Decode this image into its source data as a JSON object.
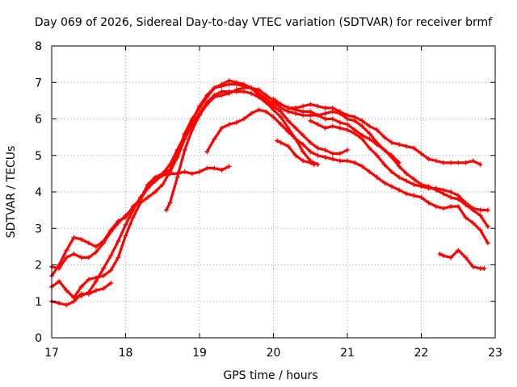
{
  "chart_data": {
    "type": "scatter",
    "title": "Day 069 of 2026, Sidereal Day-to-day VTEC variation (SDTVAR) for receiver brmf",
    "xlabel": "GPS time / hours",
    "ylabel": "SDTVAR / TECUs",
    "xlim": [
      17,
      23
    ],
    "ylim": [
      0,
      8
    ],
    "xticks": [
      "17",
      "18",
      "19",
      "20",
      "21",
      "22",
      "23"
    ],
    "yticks": [
      "0",
      "1",
      "2",
      "3",
      "4",
      "5",
      "6",
      "7",
      "8"
    ],
    "grid": true,
    "color": "#ff0000",
    "marker": "+",
    "series": [
      {
        "name": "track-1",
        "x": [
          17.0,
          17.1,
          17.2,
          17.3,
          17.4,
          17.5,
          17.6,
          17.7,
          17.8,
          17.9,
          18.0,
          18.1,
          18.2,
          18.3,
          18.4,
          18.5,
          18.6,
          18.7,
          18.8,
          18.9,
          19.0,
          19.1,
          19.2,
          19.3,
          19.4
        ],
        "y": [
          1.7,
          2.0,
          2.4,
          2.75,
          2.7,
          2.6,
          2.5,
          2.65,
          2.95,
          3.2,
          3.3,
          3.6,
          3.8,
          4.1,
          4.3,
          4.45,
          4.5,
          4.5,
          4.55,
          4.5,
          4.55,
          4.65,
          4.65,
          4.6,
          4.7
        ]
      },
      {
        "name": "track-2",
        "x": [
          17.0,
          17.1,
          17.2,
          17.3,
          17.4,
          17.5,
          17.6,
          17.7,
          17.8,
          17.9,
          18.0,
          18.1,
          18.2,
          18.3,
          18.4,
          18.5,
          18.6,
          18.7,
          18.8,
          18.9,
          19.0,
          19.1,
          19.2,
          19.3,
          19.4,
          19.5,
          19.6,
          19.7,
          19.8,
          19.9,
          20.0
        ],
        "y": [
          1.95,
          1.9,
          2.2,
          2.3,
          2.2,
          2.2,
          2.35,
          2.6,
          2.9,
          3.15,
          3.35,
          3.55,
          3.8,
          4.2,
          4.4,
          4.5,
          4.6,
          5.0,
          5.6,
          6.0,
          6.3,
          6.6,
          6.85,
          6.95,
          7.05,
          7.0,
          6.95,
          6.85,
          6.7,
          6.55,
          6.4
        ]
      },
      {
        "name": "track-3",
        "x": [
          17.0,
          17.1,
          17.2,
          17.3,
          17.4,
          17.5,
          17.6,
          17.7,
          17.8,
          17.9,
          18.0,
          18.1,
          18.2,
          18.3,
          18.4,
          18.5,
          18.6,
          18.7,
          18.8,
          18.9,
          19.0,
          19.1,
          19.2,
          19.3,
          19.4,
          19.5,
          19.6,
          19.7,
          19.8,
          19.9,
          20.0,
          20.1,
          20.2,
          20.3,
          20.4,
          20.5,
          20.6
        ],
        "y": [
          1.4,
          1.55,
          1.3,
          1.1,
          1.15,
          1.25,
          1.55,
          1.9,
          2.25,
          2.65,
          3.1,
          3.5,
          3.85,
          4.1,
          4.3,
          4.5,
          4.75,
          5.15,
          5.55,
          5.95,
          6.35,
          6.65,
          6.85,
          6.9,
          6.95,
          6.95,
          6.9,
          6.85,
          6.65,
          6.45,
          6.25,
          6.05,
          5.75,
          5.45,
          5.1,
          4.85,
          4.75
        ]
      },
      {
        "name": "track-4",
        "x": [
          17.0,
          17.1,
          17.2,
          17.3,
          17.4,
          17.5,
          17.6,
          17.7,
          17.8
        ],
        "y": [
          1.0,
          0.95,
          0.9,
          1.0,
          1.2,
          1.2,
          1.3,
          1.35,
          1.5
        ]
      },
      {
        "name": "track-5",
        "x": [
          17.3,
          17.4,
          17.5,
          17.6,
          17.7,
          17.8,
          17.9,
          18.0,
          18.1,
          18.2,
          18.3,
          18.4,
          18.5,
          18.6,
          18.7,
          18.8,
          18.9,
          19.0,
          19.1,
          19.2,
          19.3,
          19.4,
          19.5,
          19.6,
          19.7,
          19.8,
          19.9,
          20.0,
          20.1,
          20.2,
          20.3,
          20.4,
          20.5,
          20.6,
          20.7,
          20.8,
          20.9,
          21.0
        ],
        "y": [
          1.1,
          1.4,
          1.6,
          1.65,
          1.7,
          1.85,
          2.2,
          2.8,
          3.3,
          3.7,
          3.85,
          4.0,
          4.2,
          4.55,
          4.95,
          5.45,
          5.85,
          6.15,
          6.45,
          6.65,
          6.75,
          6.75,
          6.75,
          6.75,
          6.7,
          6.6,
          6.45,
          6.35,
          6.2,
          5.95,
          5.75,
          5.55,
          5.35,
          5.2,
          5.15,
          5.05,
          5.05,
          5.15
        ]
      },
      {
        "name": "track-6",
        "x": [
          18.55,
          18.6,
          18.7,
          18.8,
          18.9,
          19.0,
          19.1,
          19.2,
          19.3,
          19.4,
          19.5,
          19.6,
          19.7,
          19.8,
          19.9,
          20.0,
          20.1,
          20.2,
          20.3,
          20.4,
          20.5,
          20.6,
          20.7,
          20.8,
          20.9,
          21.0,
          21.1,
          21.2,
          21.3,
          21.4,
          21.5,
          21.6,
          21.7
        ],
        "y": [
          3.5,
          3.7,
          4.4,
          5.15,
          5.7,
          6.1,
          6.4,
          6.6,
          6.65,
          6.7,
          6.8,
          6.85,
          6.85,
          6.8,
          6.65,
          6.5,
          6.4,
          6.3,
          6.25,
          6.2,
          6.2,
          6.1,
          6.0,
          6.0,
          5.9,
          5.85,
          5.7,
          5.55,
          5.45,
          5.3,
          5.15,
          5.0,
          4.8
        ]
      },
      {
        "name": "track-7",
        "x": [
          19.1,
          19.2,
          19.3,
          19.4,
          19.5,
          19.6,
          19.7,
          19.8,
          19.9,
          20.0,
          20.1,
          20.2,
          20.3,
          20.4,
          20.5,
          20.6,
          20.7,
          20.8,
          20.9,
          21.0,
          21.1,
          21.2,
          21.3,
          21.4,
          21.5,
          21.6,
          21.7,
          21.8,
          21.9,
          22.0,
          22.1,
          22.2,
          22.3,
          22.4,
          22.5,
          22.6,
          22.7,
          22.8,
          22.9
        ],
        "y": [
          5.1,
          5.45,
          5.75,
          5.85,
          5.9,
          6.0,
          6.15,
          6.25,
          6.2,
          6.05,
          5.85,
          5.65,
          5.45,
          5.3,
          5.1,
          5.0,
          4.95,
          4.9,
          4.85,
          4.85,
          4.8,
          4.7,
          4.55,
          4.4,
          4.25,
          4.15,
          4.05,
          3.95,
          3.9,
          3.85,
          3.7,
          3.6,
          3.55,
          3.6,
          3.6,
          3.3,
          3.15,
          2.95,
          2.6
        ]
      },
      {
        "name": "track-8",
        "x": [
          20.0,
          20.1,
          20.2,
          20.3,
          20.4,
          20.5,
          20.6,
          20.7,
          20.8,
          20.9,
          21.0,
          21.1,
          21.2,
          21.3,
          21.4,
          21.5,
          21.6,
          21.7,
          21.8,
          21.9,
          22.0,
          22.1,
          22.2,
          22.3,
          22.4,
          22.5,
          22.6,
          22.7,
          22.8
        ],
        "y": [
          6.55,
          6.4,
          6.3,
          6.3,
          6.35,
          6.4,
          6.35,
          6.3,
          6.3,
          6.2,
          6.1,
          6.05,
          5.95,
          5.8,
          5.7,
          5.5,
          5.35,
          5.3,
          5.25,
          5.2,
          5.05,
          4.9,
          4.85,
          4.8,
          4.8,
          4.8,
          4.8,
          4.85,
          4.75
        ]
      },
      {
        "name": "track-9",
        "x": [
          20.0,
          20.1,
          20.2,
          20.3,
          20.4,
          20.5,
          20.6,
          20.7,
          20.8,
          20.9,
          21.0,
          21.1,
          21.2,
          21.3,
          21.4,
          21.5,
          21.6,
          21.7,
          21.8,
          21.9,
          22.0,
          22.1,
          22.2,
          22.3,
          22.4,
          22.5,
          22.6,
          22.7,
          22.8,
          22.9
        ],
        "y": [
          6.45,
          6.3,
          6.2,
          6.15,
          6.1,
          6.1,
          6.1,
          6.15,
          6.2,
          6.15,
          6.0,
          5.95,
          5.8,
          5.6,
          5.35,
          5.15,
          4.95,
          4.7,
          4.5,
          4.35,
          4.2,
          4.15,
          4.05,
          3.95,
          3.85,
          3.8,
          3.65,
          3.5,
          3.35,
          3.05
        ]
      },
      {
        "name": "track-10",
        "x": [
          20.5,
          20.6,
          20.7,
          20.8,
          20.9,
          21.0,
          21.1,
          21.2,
          21.3,
          21.4,
          21.5,
          21.6,
          21.7,
          21.8,
          21.9,
          22.0,
          22.1,
          22.2,
          22.3,
          22.4,
          22.5,
          22.6,
          22.7,
          22.8,
          22.9
        ],
        "y": [
          5.95,
          5.85,
          5.75,
          5.8,
          5.75,
          5.7,
          5.6,
          5.45,
          5.2,
          5.0,
          4.75,
          4.55,
          4.4,
          4.3,
          4.2,
          4.15,
          4.1,
          4.1,
          4.05,
          4.0,
          3.9,
          3.7,
          3.55,
          3.5,
          3.5
        ]
      },
      {
        "name": "track-11",
        "x": [
          20.05,
          20.1,
          20.2,
          20.3,
          20.4,
          20.5,
          20.55
        ],
        "y": [
          5.4,
          5.35,
          5.25,
          5.0,
          4.85,
          4.8,
          4.75
        ]
      },
      {
        "name": "track-12",
        "x": [
          22.25,
          22.3,
          22.4,
          22.5,
          22.6,
          22.7,
          22.8,
          22.85
        ],
        "y": [
          2.3,
          2.25,
          2.2,
          2.4,
          2.2,
          1.95,
          1.9,
          1.9
        ]
      }
    ]
  }
}
